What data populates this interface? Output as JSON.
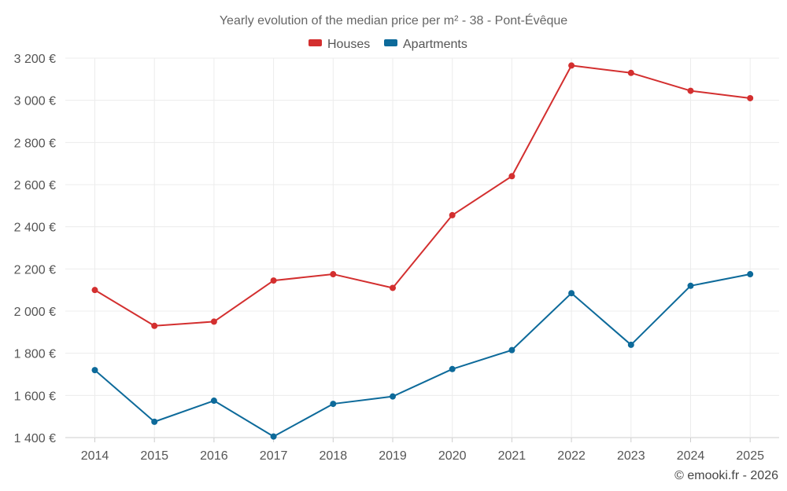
{
  "chart_data": {
    "type": "line",
    "title": "Yearly evolution of the median price per m² - 38 - Pont-Évêque",
    "xlabel": "",
    "ylabel": "",
    "categories": [
      "2014",
      "2015",
      "2016",
      "2017",
      "2018",
      "2019",
      "2020",
      "2021",
      "2022",
      "2023",
      "2024",
      "2025"
    ],
    "ylim": [
      1400,
      3200
    ],
    "yticks": [
      1400,
      1600,
      1800,
      2000,
      2200,
      2400,
      2600,
      2800,
      3000,
      3200
    ],
    "ytick_labels": [
      "1 400 €",
      "1 600 €",
      "1 800 €",
      "2 000 €",
      "2 200 €",
      "2 400 €",
      "2 600 €",
      "2 800 €",
      "3 000 €",
      "3 200 €"
    ],
    "grid": true,
    "legend_position": "top-center",
    "series": [
      {
        "name": "Houses",
        "color": "#d32f2f",
        "values": [
          2100,
          1930,
          1950,
          2145,
          2175,
          2110,
          2455,
          2640,
          3165,
          3130,
          3045,
          3010
        ]
      },
      {
        "name": "Apartments",
        "color": "#0d6a9a",
        "values": [
          1720,
          1475,
          1575,
          1405,
          1560,
          1595,
          1725,
          1815,
          2085,
          1840,
          2120,
          2175
        ]
      }
    ],
    "credit": "© emooki.fr - 2026"
  }
}
